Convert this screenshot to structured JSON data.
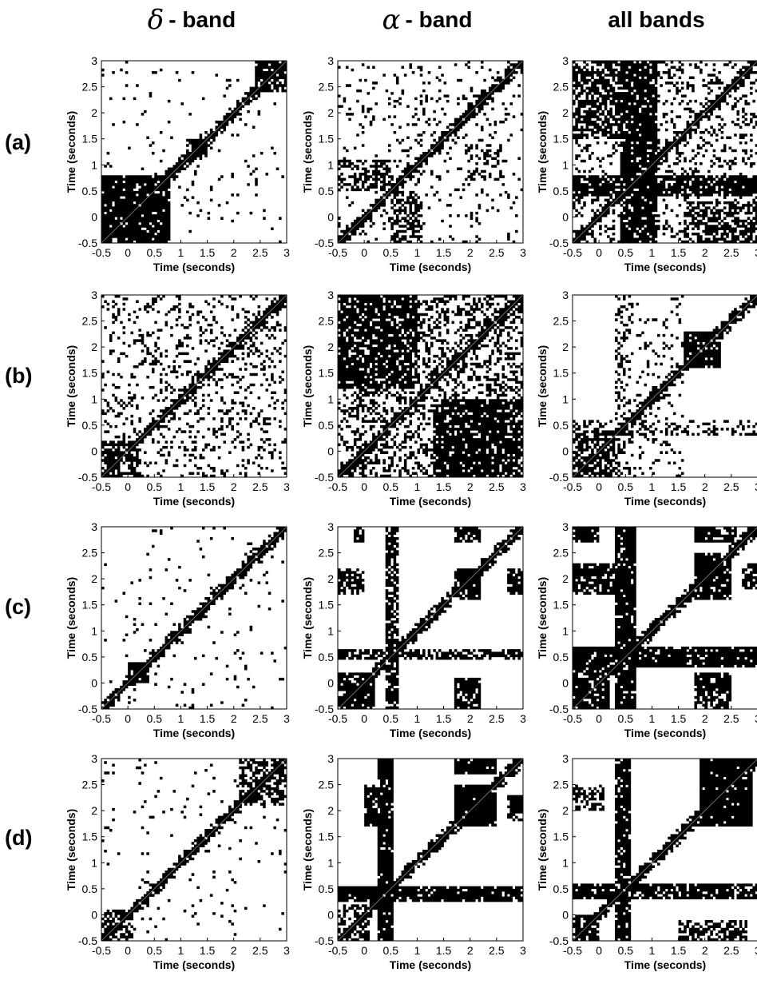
{
  "column_headers": [
    {
      "greek": "δ",
      "text": "- band"
    },
    {
      "greek": "α",
      "text": "- band"
    },
    {
      "greek": "",
      "text": "all bands"
    }
  ],
  "row_labels": [
    "(a)",
    "(b)",
    "(c)",
    "(d)"
  ],
  "axis": {
    "xlabel": "Time (seconds)",
    "ylabel": "Time (seconds)",
    "x_ticks": [
      "-0.5",
      "0",
      "0.5",
      "1",
      "1.5",
      "2",
      "2.5",
      "3"
    ],
    "y_ticks": [
      "-0.5",
      "0",
      "0.5",
      "1",
      "1.5",
      "2",
      "2.5",
      "3"
    ],
    "xlim": [
      -0.5,
      3
    ],
    "ylim": [
      -0.5,
      3
    ]
  },
  "chart_data": [
    {
      "type": "heatmap",
      "panel": "(a) δ-band",
      "pattern": "diagonal",
      "xlabel": "Time (seconds)",
      "ylabel": "Time (seconds)",
      "xlim": [
        -0.5,
        3
      ],
      "ylim": [
        -0.5,
        3
      ],
      "blocks": [
        [
          -0.5,
          0.8,
          -0.5,
          0.8,
          0.9
        ],
        [
          1.1,
          1.5,
          1.1,
          1.5,
          0.7
        ],
        [
          2.4,
          3.0,
          2.4,
          3.0,
          0.75
        ],
        [
          -0.5,
          3,
          -0.5,
          3,
          0.03
        ]
      ]
    },
    {
      "type": "heatmap",
      "panel": "(a) α-band",
      "pattern": "diagonal-ring",
      "xlabel": "Time (seconds)",
      "ylabel": "Time (seconds)",
      "xlim": [
        -0.5,
        3
      ],
      "ylim": [
        -0.5,
        3
      ],
      "blocks": [
        [
          -0.5,
          0.5,
          0.5,
          1.1,
          0.55
        ],
        [
          0.5,
          1.1,
          -0.5,
          0.5,
          0.55
        ],
        [
          1.9,
          2.6,
          0.7,
          1.4,
          0.35
        ],
        [
          -0.5,
          3,
          -0.5,
          3,
          0.08
        ]
      ]
    },
    {
      "type": "heatmap",
      "panel": "(a) all bands",
      "pattern": "bands",
      "xlabel": "Time (seconds)",
      "ylabel": "Time (seconds)",
      "xlim": [
        -0.5,
        3
      ],
      "ylim": [
        -0.5,
        3
      ],
      "blocks": [
        [
          0.7,
          1.1,
          -0.5,
          3,
          0.85
        ],
        [
          -0.5,
          3,
          0.4,
          0.8,
          0.85
        ],
        [
          -0.5,
          0.5,
          1.5,
          3,
          0.65
        ],
        [
          1.6,
          3,
          -0.5,
          0.3,
          0.6
        ],
        [
          -0.5,
          3,
          -0.5,
          3,
          0.2
        ]
      ]
    },
    {
      "type": "heatmap",
      "panel": "(b) δ-band",
      "pattern": "diagonal",
      "xlabel": "Time (seconds)",
      "ylabel": "Time (seconds)",
      "xlim": [
        -0.5,
        3
      ],
      "ylim": [
        -0.5,
        3
      ],
      "blocks": [
        [
          -0.5,
          0.2,
          -0.5,
          0.2,
          0.7
        ],
        [
          -0.5,
          3,
          -0.5,
          3,
          0.18
        ]
      ]
    },
    {
      "type": "heatmap",
      "panel": "(b) α-band",
      "pattern": "dense",
      "xlabel": "Time (seconds)",
      "ylabel": "Time (seconds)",
      "xlim": [
        -0.5,
        3
      ],
      "ylim": [
        -0.5,
        3
      ],
      "blocks": [
        [
          -0.5,
          1.0,
          1.2,
          3.0,
          0.8
        ],
        [
          1.3,
          3.0,
          -0.5,
          1.0,
          0.85
        ],
        [
          -0.5,
          3,
          -0.5,
          3,
          0.35
        ]
      ]
    },
    {
      "type": "heatmap",
      "panel": "(b) all bands",
      "pattern": "diagonal",
      "xlabel": "Time (seconds)",
      "ylabel": "Time (seconds)",
      "xlim": [
        -0.5,
        3
      ],
      "ylim": [
        -0.5,
        3
      ],
      "blocks": [
        [
          1.6,
          2.3,
          1.6,
          2.3,
          0.85
        ],
        [
          -0.5,
          0.4,
          -0.5,
          0.4,
          0.6
        ],
        [
          -0.5,
          3,
          0.3,
          0.6,
          0.3
        ],
        [
          0.6,
          1.6,
          -0.5,
          3,
          0.12
        ]
      ]
    },
    {
      "type": "heatmap",
      "panel": "(c) δ-band",
      "pattern": "diagonal",
      "xlabel": "Time (seconds)",
      "ylabel": "Time (seconds)",
      "xlim": [
        -0.5,
        3
      ],
      "ylim": [
        -0.5,
        3
      ],
      "blocks": [
        [
          0.0,
          0.4,
          0.0,
          0.4,
          0.9
        ],
        [
          -0.5,
          3,
          -0.5,
          3,
          0.03
        ]
      ]
    },
    {
      "type": "heatmap",
      "panel": "(c) α-band",
      "pattern": "blocks",
      "xlabel": "Time (seconds)",
      "ylabel": "Time (seconds)",
      "xlim": [
        -0.5,
        3
      ],
      "ylim": [
        -0.5,
        3
      ],
      "blocks": [
        [
          0.4,
          0.6,
          -0.5,
          3,
          0.75
        ],
        [
          -0.5,
          3,
          0.45,
          0.65,
          0.7
        ],
        [
          1.7,
          2.2,
          1.6,
          2.2,
          0.9
        ],
        [
          -0.5,
          0.0,
          1.7,
          2.2,
          0.8
        ],
        [
          1.7,
          2.2,
          -0.5,
          0.1,
          0.8
        ],
        [
          -0.5,
          0.2,
          -0.5,
          0.2,
          0.8
        ],
        [
          -0.2,
          0.0,
          2.7,
          3.0,
          0.8
        ],
        [
          1.7,
          2.2,
          2.7,
          3.0,
          0.8
        ],
        [
          2.7,
          3.0,
          1.7,
          2.2,
          0.8
        ]
      ]
    },
    {
      "type": "heatmap",
      "panel": "(c) all bands",
      "pattern": "bands",
      "xlabel": "Time (seconds)",
      "ylabel": "Time (seconds)",
      "xlim": [
        -0.5,
        3
      ],
      "ylim": [
        -0.5,
        3
      ],
      "blocks": [
        [
          0.3,
          0.7,
          -0.5,
          3,
          0.9
        ],
        [
          -0.5,
          3,
          0.3,
          0.7,
          0.9
        ],
        [
          1.8,
          2.5,
          1.6,
          2.3,
          0.85
        ],
        [
          -0.5,
          0.3,
          1.7,
          2.3,
          0.8
        ],
        [
          1.8,
          2.5,
          -0.5,
          0.2,
          0.7
        ],
        [
          -0.5,
          0.2,
          -0.5,
          0.3,
          0.8
        ],
        [
          -0.5,
          0.0,
          2.7,
          3.0,
          0.85
        ],
        [
          1.8,
          2.6,
          2.7,
          3.0,
          0.85
        ],
        [
          2.7,
          3.0,
          1.8,
          2.3,
          0.7
        ]
      ]
    },
    {
      "type": "heatmap",
      "panel": "(d) δ-band",
      "pattern": "diagonal",
      "xlabel": "Time (seconds)",
      "ylabel": "Time (seconds)",
      "xlim": [
        -0.5,
        3
      ],
      "ylim": [
        -0.5,
        3
      ],
      "blocks": [
        [
          2.1,
          3.0,
          2.1,
          3.0,
          0.5
        ],
        [
          -0.5,
          0.1,
          -0.5,
          0.1,
          0.6
        ],
        [
          -0.5,
          3,
          -0.5,
          3,
          0.03
        ]
      ]
    },
    {
      "type": "heatmap",
      "panel": "(d) α-band",
      "pattern": "blocks",
      "xlabel": "Time (seconds)",
      "ylabel": "Time (seconds)",
      "xlim": [
        -0.5,
        3
      ],
      "ylim": [
        -0.5,
        3
      ],
      "blocks": [
        [
          0.25,
          0.55,
          -0.5,
          3,
          0.9
        ],
        [
          -0.5,
          3,
          0.25,
          0.55,
          0.9
        ],
        [
          1.7,
          2.5,
          1.7,
          2.5,
          0.95
        ],
        [
          0.0,
          0.5,
          1.7,
          2.5,
          0.85
        ],
        [
          1.7,
          2.5,
          2.7,
          3.0,
          0.95
        ],
        [
          0.25,
          0.55,
          2.7,
          3.0,
          0.95
        ],
        [
          2.7,
          3.0,
          1.8,
          2.3,
          0.8
        ],
        [
          -0.5,
          0.1,
          -0.5,
          0.2,
          0.5
        ]
      ]
    },
    {
      "type": "heatmap",
      "panel": "(d) all bands",
      "pattern": "bands",
      "xlabel": "Time (seconds)",
      "ylabel": "Time (seconds)",
      "xlim": [
        -0.5,
        3
      ],
      "ylim": [
        -0.5,
        3
      ],
      "blocks": [
        [
          0.3,
          0.6,
          -0.5,
          3,
          0.8
        ],
        [
          -0.5,
          3,
          0.3,
          0.6,
          0.85
        ],
        [
          1.9,
          2.9,
          1.7,
          2.5,
          0.95
        ],
        [
          1.9,
          2.9,
          2.6,
          3.0,
          0.95
        ],
        [
          1.5,
          2.8,
          -0.5,
          -0.1,
          0.6
        ],
        [
          -0.5,
          0.0,
          -0.5,
          0.0,
          0.7
        ],
        [
          -0.5,
          0.1,
          2.0,
          2.5,
          0.5
        ]
      ]
    }
  ]
}
